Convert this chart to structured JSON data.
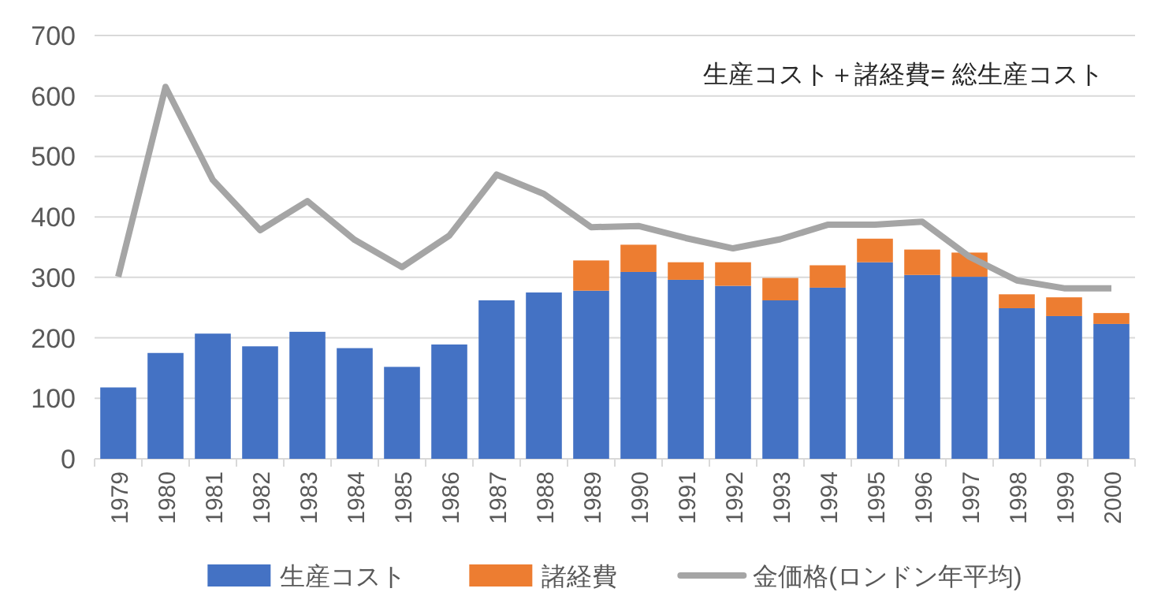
{
  "chart_data": {
    "type": "bar",
    "stacked": true,
    "categories": [
      "1979",
      "1980",
      "1981",
      "1982",
      "1983",
      "1984",
      "1985",
      "1986",
      "1987",
      "1988",
      "1989",
      "1990",
      "1991",
      "1992",
      "1993",
      "1994",
      "1995",
      "1996",
      "1997",
      "1998",
      "1999",
      "2000"
    ],
    "series": [
      {
        "name": "生産コスト",
        "color": "#4472c4",
        "values": [
          118,
          175,
          207,
          186,
          210,
          183,
          152,
          189,
          262,
          275,
          278,
          309,
          296,
          286,
          262,
          283,
          325,
          304,
          301,
          249,
          236,
          223
        ]
      },
      {
        "name": "諸経費",
        "color": "#ed7d31",
        "values": [
          null,
          null,
          null,
          null,
          null,
          null,
          null,
          null,
          null,
          null,
          50,
          45,
          29,
          39,
          37,
          37,
          39,
          42,
          40,
          23,
          31,
          18
        ]
      },
      {
        "name": "金価格(ロンドン年平均)",
        "type": "line",
        "color": "#a5a5a5",
        "values": [
          301,
          615,
          461,
          378,
          426,
          362,
          317,
          369,
          470,
          438,
          383,
          385,
          365,
          348,
          363,
          387,
          387,
          392,
          334,
          295,
          282,
          282
        ]
      }
    ],
    "ylim": [
      0,
      700
    ],
    "yticks": [
      0,
      100,
      200,
      300,
      400,
      500,
      600,
      700
    ],
    "grid": "y",
    "legend": "bottom",
    "annotations": [
      "生産コスト＋諸経費= 総生産コスト"
    ]
  }
}
